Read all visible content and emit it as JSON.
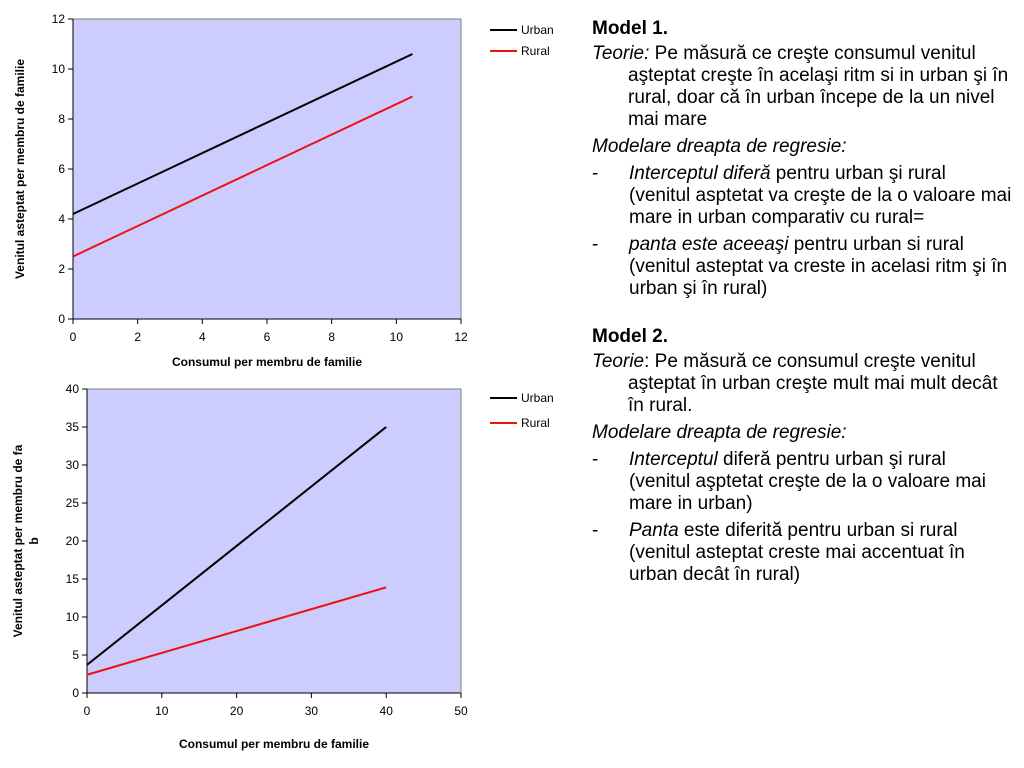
{
  "colors": {
    "plot_background": "#ccccff",
    "urban": "#000000",
    "rural": "#ee1111"
  },
  "chart_data": [
    {
      "type": "line",
      "xlabel": "Consumul per membru de familie",
      "ylabel": "Venitul asteptat per membru de familie",
      "xlim": [
        0,
        12
      ],
      "ylim": [
        0,
        12
      ],
      "xticks": [
        0,
        2,
        4,
        6,
        8,
        10,
        12
      ],
      "yticks": [
        0,
        2,
        4,
        6,
        8,
        10,
        12
      ],
      "legend_position": "right",
      "series": [
        {
          "name": "Urban",
          "color": "#000000",
          "x": [
            0,
            10.5
          ],
          "y": [
            4.2,
            10.6
          ]
        },
        {
          "name": "Rural",
          "color": "#ee1111",
          "x": [
            0,
            10.5
          ],
          "y": [
            2.5,
            8.9
          ]
        }
      ]
    },
    {
      "type": "line",
      "xlabel": "Consumul per membru de familie",
      "ylabel": "Venitul asteptat per membru de fa b",
      "xlim": [
        0,
        50
      ],
      "ylim": [
        0,
        40
      ],
      "xticks": [
        0,
        10,
        20,
        30,
        40,
        50
      ],
      "yticks": [
        0,
        5,
        10,
        15,
        20,
        25,
        30,
        35,
        40
      ],
      "legend_position": "right",
      "series": [
        {
          "name": "Urban",
          "color": "#000000",
          "x": [
            0,
            40
          ],
          "y": [
            3.7,
            35
          ]
        },
        {
          "name": "Rural",
          "color": "#ee1111",
          "x": [
            0,
            40
          ],
          "y": [
            2.4,
            13.9
          ]
        }
      ]
    }
  ],
  "text": {
    "model1": {
      "title": "Model 1.",
      "theory_label": "Teorie:",
      "theory_text": " Pe măsură ce creşte consumul venitul aşteptat creşte în acelaşi ritm si in urban şi în rural, doar că în urban începe de la un nivel mai mare",
      "modelare": "Modelare dreapta de regresie:",
      "bullets": [
        {
          "dash": "-",
          "italic": "Interceptul diferă",
          "rest": " pentru urban şi rural (venitul asptetat va creşte de la o valoare mai mare in urban comparativ cu rural="
        },
        {
          "dash": "-",
          "italic": "panta este aceeaşi",
          "rest": " pentru urban si rural (venitul asteptat va creste in acelasi ritm şi în urban şi în rural)"
        }
      ]
    },
    "model2": {
      "title": "Model 2.",
      "theory_label": "Teorie",
      "theory_text": ": Pe măsură ce consumul creşte venitul aşteptat în urban creşte mult mai mult decât în rural.",
      "modelare": "Modelare dreapta de regresie:",
      "bullets": [
        {
          "dash": "-",
          "italic": "Interceptul",
          "rest": " diferă pentru urban şi rural (venitul aşptetat creşte de la o valoare mai mare in urban)"
        },
        {
          "dash": "-",
          "italic": "Panta",
          "rest": " este diferită pentru urban si rural (venitul asteptat creste mai accentuat în urban decât în rural)"
        }
      ]
    }
  }
}
